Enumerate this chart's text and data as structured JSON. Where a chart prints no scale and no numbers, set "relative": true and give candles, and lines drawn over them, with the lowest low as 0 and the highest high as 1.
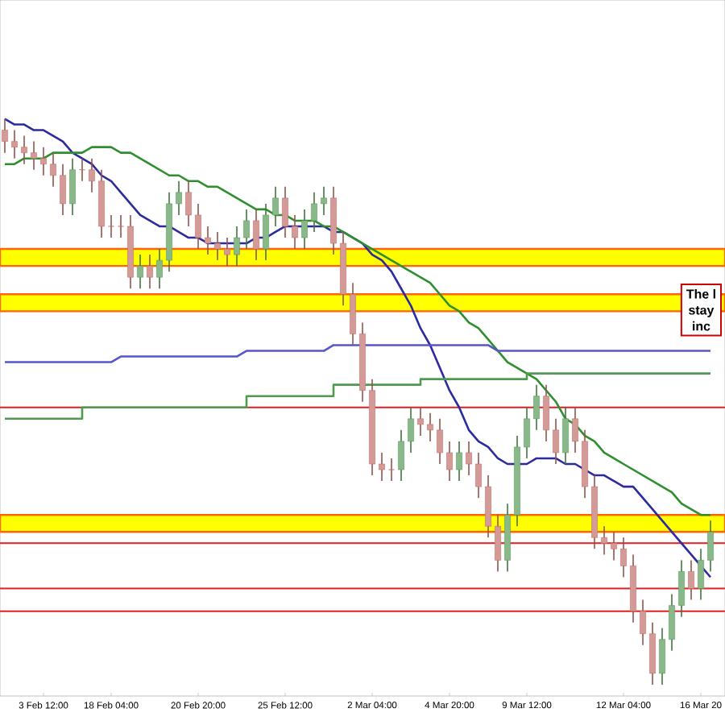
{
  "chart_data": {
    "type": "candlestick",
    "relative": true,
    "tick_labels": "x",
    "categories": [
      null,
      null,
      null,
      null,
      "3 Feb 12:00",
      null,
      null,
      null,
      null,
      null,
      null,
      "18 Feb 04:00",
      null,
      null,
      null,
      null,
      null,
      null,
      null,
      null,
      "20 Feb 20:00",
      null,
      null,
      null,
      null,
      null,
      null,
      null,
      null,
      "25 Feb 12:00",
      null,
      null,
      null,
      null,
      null,
      null,
      null,
      null,
      "2 Mar 04:00",
      null,
      null,
      null,
      null,
      null,
      null,
      null,
      "4 Mar 20:00",
      null,
      null,
      null,
      null,
      null,
      null,
      null,
      "9 Mar 12:00",
      null,
      null,
      null,
      null,
      null,
      null,
      null,
      null,
      null,
      "12 Mar 04:00",
      null,
      null,
      null,
      null,
      null,
      null,
      null,
      "16 Mar 20",
      null
    ],
    "series": [
      {
        "colors": [
          "#c0706a",
          "#c0706a",
          "#c0706a",
          "#c0706a",
          "#c0706a",
          "#c0706a",
          "#c0706a",
          "#5a9a5a",
          "#c0706a",
          "#c0706a",
          "#c0706a",
          "#c0706a",
          "#c0706a",
          "#c0706a",
          "#5a9a5a",
          "#c0706a",
          "#5a9a5a",
          "#5a9a5a",
          "#5a9a5a",
          "#c0706a",
          "#c0706a",
          "#c0706a",
          "#c0706a",
          "#c0706a",
          "#5a9a5a",
          "#5a9a5a",
          "#c0706a",
          "#5a9a5a",
          "#5a9a5a",
          "#c0706a",
          "#c0706a",
          "#5a9a5a",
          "#5a9a5a",
          "#5a9a5a",
          "#c0706a",
          "#c0706a",
          "#c0706a",
          "#c0706a",
          "#c0706a",
          "#c0706a",
          "#c0706a",
          "#5a9a5a",
          "#5a9a5a",
          "#c0706a",
          "#c0706a",
          "#c0706a",
          "#c0706a",
          "#5a9a5a",
          "#c0706a",
          "#c0706a",
          "#c0706a",
          "#c0706a",
          "#5a9a5a",
          "#5a9a5a",
          "#5a9a5a",
          "#5a9a5a",
          "#c0706a",
          "#c0706a",
          "#5a9a5a",
          "#c0706a",
          "#c0706a",
          "#c0706a",
          "#c0706a",
          "#c0706a",
          "#c0706a",
          "#c0706a",
          "#c0706a",
          "#c0706a",
          "#5a9a5a",
          "#5a9a5a",
          "#5a9a5a",
          "#c0706a",
          "#5a9a5a",
          "#5a9a5a"
        ],
        "ohlc": [
          [
            0.98,
            1.0,
            0.94,
            0.96
          ],
          [
            0.96,
            0.98,
            0.93,
            0.95
          ],
          [
            0.95,
            0.97,
            0.92,
            0.94
          ],
          [
            0.94,
            0.96,
            0.91,
            0.93
          ],
          [
            0.93,
            0.95,
            0.9,
            0.92
          ],
          [
            0.92,
            0.94,
            0.88,
            0.9
          ],
          [
            0.9,
            0.92,
            0.83,
            0.85
          ],
          [
            0.85,
            0.93,
            0.83,
            0.91
          ],
          [
            0.91,
            0.93,
            0.89,
            0.91
          ],
          [
            0.91,
            0.93,
            0.87,
            0.89
          ],
          [
            0.89,
            0.91,
            0.79,
            0.81
          ],
          [
            0.81,
            0.83,
            0.79,
            0.81
          ],
          [
            0.81,
            0.83,
            0.79,
            0.81
          ],
          [
            0.81,
            0.83,
            0.7,
            0.72
          ],
          [
            0.72,
            0.76,
            0.7,
            0.74
          ],
          [
            0.74,
            0.76,
            0.7,
            0.72
          ],
          [
            0.72,
            0.77,
            0.7,
            0.75
          ],
          [
            0.75,
            0.87,
            0.73,
            0.85
          ],
          [
            0.85,
            0.89,
            0.83,
            0.87
          ],
          [
            0.87,
            0.89,
            0.81,
            0.83
          ],
          [
            0.83,
            0.85,
            0.77,
            0.79
          ],
          [
            0.79,
            0.81,
            0.76,
            0.78
          ],
          [
            0.78,
            0.8,
            0.75,
            0.77
          ],
          [
            0.77,
            0.79,
            0.74,
            0.76
          ],
          [
            0.76,
            0.81,
            0.74,
            0.79
          ],
          [
            0.79,
            0.84,
            0.77,
            0.82
          ],
          [
            0.82,
            0.84,
            0.75,
            0.77
          ],
          [
            0.77,
            0.85,
            0.75,
            0.83
          ],
          [
            0.83,
            0.88,
            0.81,
            0.86
          ],
          [
            0.86,
            0.88,
            0.79,
            0.81
          ],
          [
            0.81,
            0.83,
            0.77,
            0.79
          ],
          [
            0.79,
            0.84,
            0.77,
            0.82
          ],
          [
            0.82,
            0.87,
            0.8,
            0.85
          ],
          [
            0.85,
            0.88,
            0.83,
            0.86
          ],
          [
            0.86,
            0.88,
            0.76,
            0.78
          ],
          [
            0.78,
            0.8,
            0.67,
            0.69
          ],
          [
            0.69,
            0.71,
            0.6,
            0.62
          ],
          [
            0.62,
            0.64,
            0.5,
            0.52
          ],
          [
            0.52,
            0.54,
            0.37,
            0.39
          ],
          [
            0.39,
            0.41,
            0.36,
            0.38
          ],
          [
            0.38,
            0.4,
            0.36,
            0.38
          ],
          [
            0.38,
            0.45,
            0.36,
            0.43
          ],
          [
            0.43,
            0.49,
            0.41,
            0.47
          ],
          [
            0.47,
            0.49,
            0.44,
            0.46
          ],
          [
            0.46,
            0.48,
            0.43,
            0.45
          ],
          [
            0.45,
            0.47,
            0.39,
            0.41
          ],
          [
            0.41,
            0.43,
            0.36,
            0.38
          ],
          [
            0.38,
            0.43,
            0.36,
            0.41
          ],
          [
            0.41,
            0.43,
            0.37,
            0.39
          ],
          [
            0.39,
            0.41,
            0.33,
            0.35
          ],
          [
            0.35,
            0.37,
            0.26,
            0.28
          ],
          [
            0.28,
            0.3,
            0.2,
            0.22
          ],
          [
            0.22,
            0.32,
            0.2,
            0.3
          ],
          [
            0.3,
            0.44,
            0.28,
            0.42
          ],
          [
            0.42,
            0.49,
            0.4,
            0.47
          ],
          [
            0.47,
            0.53,
            0.45,
            0.51
          ],
          [
            0.51,
            0.53,
            0.43,
            0.45
          ],
          [
            0.45,
            0.47,
            0.39,
            0.41
          ],
          [
            0.41,
            0.49,
            0.39,
            0.47
          ],
          [
            0.47,
            0.49,
            0.41,
            0.43
          ],
          [
            0.43,
            0.45,
            0.33,
            0.35
          ],
          [
            0.35,
            0.37,
            0.24,
            0.26
          ],
          [
            0.26,
            0.28,
            0.23,
            0.25
          ],
          [
            0.25,
            0.27,
            0.22,
            0.24
          ],
          [
            0.24,
            0.26,
            0.19,
            0.21
          ],
          [
            0.21,
            0.23,
            0.11,
            0.13
          ],
          [
            0.13,
            0.15,
            0.07,
            0.09
          ],
          [
            0.09,
            0.11,
            0.0,
            0.02
          ],
          [
            0.02,
            0.1,
            0.0,
            0.08
          ],
          [
            0.08,
            0.16,
            0.06,
            0.14
          ],
          [
            0.14,
            0.22,
            0.12,
            0.2
          ],
          [
            0.2,
            0.22,
            0.15,
            0.17
          ],
          [
            0.17,
            0.24,
            0.15,
            0.22
          ],
          [
            0.22,
            0.29,
            0.2,
            0.27
          ]
        ]
      },
      {
        "type": "line",
        "color": "#2b2b9e",
        "values": [
          1.0,
          0.99,
          0.99,
          0.98,
          0.98,
          0.97,
          0.96,
          0.94,
          0.93,
          0.92,
          0.9,
          0.89,
          0.87,
          0.85,
          0.83,
          0.82,
          0.81,
          0.81,
          0.8,
          0.79,
          0.79,
          0.78,
          0.78,
          0.78,
          0.78,
          0.78,
          0.79,
          0.79,
          0.8,
          0.81,
          0.81,
          0.81,
          0.81,
          0.81,
          0.8,
          0.8,
          0.79,
          0.78,
          0.76,
          0.75,
          0.73,
          0.7,
          0.67,
          0.63,
          0.6,
          0.56,
          0.52,
          0.49,
          0.45,
          0.43,
          0.42,
          0.4,
          0.39,
          0.39,
          0.39,
          0.4,
          0.4,
          0.4,
          0.39,
          0.39,
          0.38,
          0.37,
          0.37,
          0.36,
          0.35,
          0.35,
          0.33,
          0.31,
          0.29,
          0.27,
          0.25,
          0.23,
          0.21,
          0.19
        ]
      },
      {
        "type": "line",
        "color": "#2f8f2f",
        "values": [
          0.92,
          0.92,
          0.93,
          0.93,
          0.93,
          0.94,
          0.94,
          0.94,
          0.94,
          0.95,
          0.95,
          0.95,
          0.94,
          0.94,
          0.93,
          0.92,
          0.91,
          0.9,
          0.9,
          0.89,
          0.89,
          0.88,
          0.88,
          0.87,
          0.86,
          0.85,
          0.84,
          0.84,
          0.83,
          0.83,
          0.82,
          0.82,
          0.82,
          0.81,
          0.81,
          0.8,
          0.79,
          0.78,
          0.77,
          0.76,
          0.75,
          0.74,
          0.73,
          0.72,
          0.71,
          0.69,
          0.67,
          0.66,
          0.64,
          0.63,
          0.61,
          0.59,
          0.57,
          0.56,
          0.55,
          0.54,
          0.52,
          0.5,
          0.47,
          0.46,
          0.44,
          0.43,
          0.41,
          0.4,
          0.39,
          0.38,
          0.37,
          0.36,
          0.35,
          0.34,
          0.32,
          0.31,
          0.3,
          0.3
        ]
      },
      {
        "type": "line",
        "color": "#5555cc",
        "values": [
          0.57,
          0.57,
          0.57,
          0.57,
          0.57,
          0.57,
          0.57,
          0.57,
          0.57,
          0.57,
          0.57,
          0.57,
          0.58,
          0.58,
          0.58,
          0.58,
          0.58,
          0.58,
          0.58,
          0.58,
          0.58,
          0.58,
          0.58,
          0.58,
          0.58,
          0.59,
          0.59,
          0.59,
          0.59,
          0.59,
          0.59,
          0.59,
          0.59,
          0.59,
          0.6,
          0.6,
          0.6,
          0.6,
          0.6,
          0.6,
          0.6,
          0.6,
          0.6,
          0.6,
          0.6,
          0.6,
          0.6,
          0.6,
          0.6,
          0.6,
          0.6,
          0.59,
          0.59,
          0.59,
          0.59,
          0.59,
          0.59,
          0.59,
          0.59,
          0.59,
          0.59,
          0.59,
          0.59,
          0.59,
          0.59,
          0.59,
          0.59,
          0.59,
          0.59,
          0.59,
          0.59,
          0.59,
          0.59,
          0.59
        ]
      },
      {
        "type": "step",
        "color": "#4f9a4f",
        "values": [
          0.47,
          0.47,
          0.47,
          0.47,
          0.47,
          0.47,
          0.47,
          0.47,
          0.49,
          0.49,
          0.49,
          0.49,
          0.49,
          0.49,
          0.49,
          0.49,
          0.49,
          0.49,
          0.49,
          0.49,
          0.49,
          0.49,
          0.49,
          0.49,
          0.49,
          0.51,
          0.51,
          0.51,
          0.51,
          0.51,
          0.51,
          0.51,
          0.51,
          0.51,
          0.53,
          0.53,
          0.53,
          0.53,
          0.53,
          0.53,
          0.53,
          0.53,
          0.53,
          0.54,
          0.54,
          0.54,
          0.54,
          0.54,
          0.54,
          0.54,
          0.54,
          0.54,
          0.54,
          0.54,
          0.55,
          0.55,
          0.55,
          0.55,
          0.55,
          0.55,
          0.55,
          0.55,
          0.55,
          0.55,
          0.55,
          0.55,
          0.55,
          0.55,
          0.55,
          0.55,
          0.55,
          0.55,
          0.55,
          0.55
        ]
      }
    ],
    "bands": [
      {
        "axis": "y",
        "from": 0.74,
        "to": 0.77,
        "color": "#ffff00"
      },
      {
        "axis": "y",
        "from": 0.66,
        "to": 0.69,
        "color": "#ffff00"
      },
      {
        "axis": "y",
        "from": 0.27,
        "to": 0.3,
        "color": "#ffff00"
      }
    ],
    "ref_lines": [
      {
        "axis": "y",
        "value": 0.49,
        "color": "#e02020"
      },
      {
        "axis": "y",
        "value": 0.25,
        "color": "#e02020"
      },
      {
        "axis": "y",
        "value": 0.17,
        "color": "#e02020"
      },
      {
        "axis": "y",
        "value": 0.13,
        "color": "#e02020"
      }
    ],
    "annotations": [
      "The l",
      "stay",
      "inc"
    ]
  }
}
